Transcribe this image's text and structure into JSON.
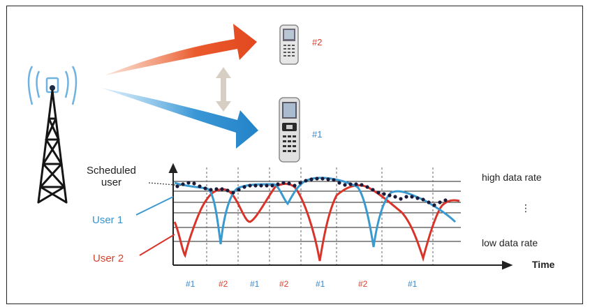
{
  "phone_labels": {
    "top": "#2",
    "bottom": "#1"
  },
  "labels": {
    "scheduled_user": "Scheduled\nuser",
    "user1": "User 1",
    "user2": "User 2",
    "high_rate": "high data rate",
    "low_rate": "low data rate",
    "ellipsis": "⋮",
    "time": "Time"
  },
  "slots": [
    {
      "label": "#1",
      "color": "#3a86c8"
    },
    {
      "label": "#2",
      "color": "#d8402a"
    },
    {
      "label": "#1",
      "color": "#3a86c8"
    },
    {
      "label": "#2",
      "color": "#d8402a"
    },
    {
      "label": "#1",
      "color": "#3a86c8"
    },
    {
      "label": "#2",
      "color": "#d8402a"
    },
    {
      "label": "#1",
      "color": "#3a86c8"
    }
  ],
  "colors": {
    "user1": "#3a9ad0",
    "user2": "#d9342a",
    "scheduled_dots": "#1a1a3a",
    "arrow_red": "#e8552a",
    "arrow_blue": "#2a8bd0",
    "double_arrow": "#d8cfc4"
  },
  "icons": [
    "tower-icon",
    "phone-icon"
  ]
}
